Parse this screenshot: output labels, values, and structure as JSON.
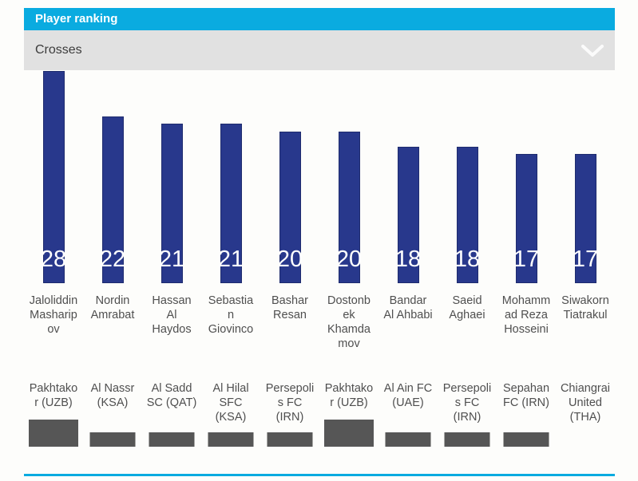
{
  "header": {
    "title": "Player ranking"
  },
  "filter": {
    "selected": "Crosses",
    "chevron_icon": "chevron-down-icon"
  },
  "colors": {
    "accent_cyan": "#0aabe0",
    "bar_navy": "#28388c",
    "bar_border": "#1f2c6e",
    "filter_gray": "#e1e1e1",
    "logo_gray": "#565656",
    "label_text_gray": "#4f4f4f",
    "value_label_white": "#ffffff"
  },
  "chart_data": {
    "type": "bar",
    "title": "Player ranking",
    "metric": "Crosses",
    "categories": [
      "Jaloliddin Masharipov",
      "Nordin Amrabat",
      "Hassan Al Haydos",
      "Sebastian Giovinco",
      "Bashar Resan",
      "Dostonbek Khamdamov",
      "Bandar Al Ahbabi",
      "Saeid Aghaei",
      "Mohammad Reza Hosseini",
      "Siwakorn Tiatrakul"
    ],
    "values": [
      28,
      22,
      21,
      21,
      20,
      20,
      18,
      18,
      17,
      17
    ],
    "teams": [
      "Pakhtakor (UZB)",
      "Al Nassr (KSA)",
      "Al Sadd SC (QAT)",
      "Al Hilal SFC (KSA)",
      "Persepolis FC (IRN)",
      "Pakhtakor (UZB)",
      "Al Ain FC (UAE)",
      "Persepolis FC (IRN)",
      "Sepahan FC (IRN)",
      "Chiangrai United (THA)"
    ],
    "ylim": [
      0,
      28
    ],
    "grid": false,
    "legend": "none",
    "value_label_position": "inside-bottom",
    "players": [
      {
        "name": "Jaloliddin Masharipov",
        "team": "Pakhtakor (UZB)",
        "value": 28,
        "logo": "large"
      },
      {
        "name": "Nordin Amrabat",
        "team": "Al Nassr (KSA)",
        "value": 22,
        "logo": "small"
      },
      {
        "name": "Hassan Al Haydos",
        "team": "Al Sadd SC (QAT)",
        "value": 21,
        "logo": "small"
      },
      {
        "name": "Sebastian Giovinco",
        "team": "Al Hilal SFC (KSA)",
        "value": 21,
        "logo": "small"
      },
      {
        "name": "Bashar Resan",
        "team": "Persepolis FC (IRN)",
        "value": 20,
        "logo": "small"
      },
      {
        "name": "Dostonbek Khamdamov",
        "team": "Pakhtakor (UZB)",
        "value": 20,
        "logo": "large"
      },
      {
        "name": "Bandar Al Ahbabi",
        "team": "Al Ain FC (UAE)",
        "value": 18,
        "logo": "small"
      },
      {
        "name": "Saeid Aghaei",
        "team": "Persepolis FC (IRN)",
        "value": 18,
        "logo": "small"
      },
      {
        "name": "Mohammad Reza Hosseini",
        "team": "Sepahan FC (IRN)",
        "value": 17,
        "logo": "small"
      },
      {
        "name": "Siwakorn Tiatrakul",
        "team": "Chiangrai United (THA)",
        "value": 17,
        "logo": "none"
      }
    ]
  }
}
